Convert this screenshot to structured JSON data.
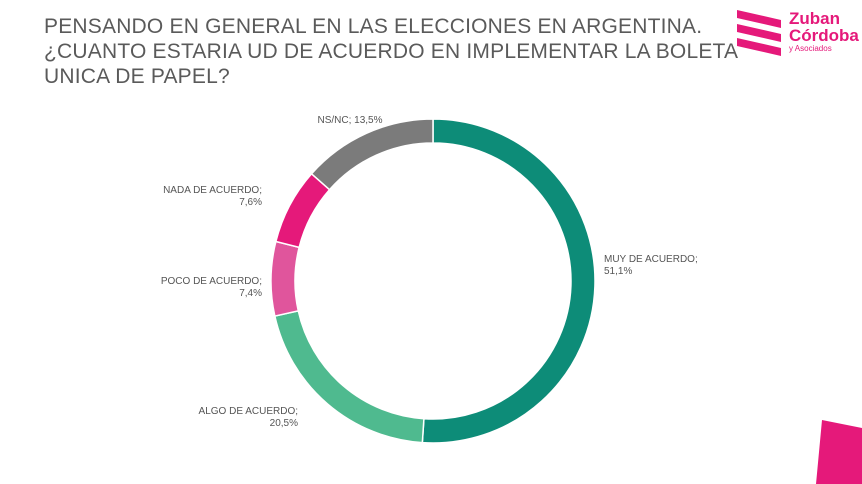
{
  "title_lines": [
    "PENSANDO EN GENERAL EN LAS ELECCIONES EN ARGENTINA.",
    "¿CUANTO ESTARIA UD DE ACUERDO EN IMPLEMENTAR LA BOLETA",
    "UNICA DE PAPEL?"
  ],
  "logo": {
    "line1": "Zuban",
    "line2": "Córdoba",
    "line3": "y Asociados",
    "color": "#e5197a"
  },
  "chart_data": {
    "type": "pie",
    "donut": true,
    "slices": [
      {
        "label": "MUY DE ACUERDO;",
        "value_text": "51,1%",
        "value": 51.1,
        "color": "#0d8c78"
      },
      {
        "label": "ALGO DE ACUERDO;",
        "value_text": "20,5%",
        "value": 20.5,
        "color": "#4fba8f"
      },
      {
        "label": "POCO DE ACUERDO;",
        "value_text": "7,4%",
        "value": 7.4,
        "color": "#e0559c"
      },
      {
        "label": "NADA DE ACUERDO;",
        "value_text": "7,6%",
        "value": 7.6,
        "color": "#e5197a"
      },
      {
        "label": "NS/NC;",
        "value_text": "13,5%",
        "value": 13.5,
        "color": "#7b7b7b"
      }
    ]
  }
}
